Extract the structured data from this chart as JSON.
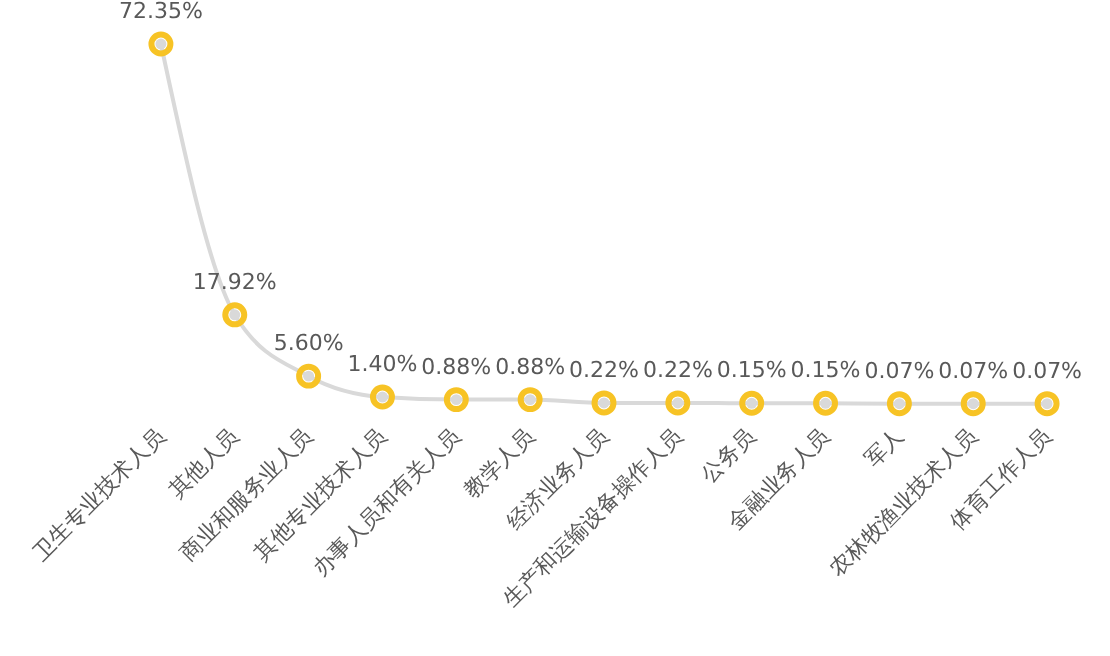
{
  "chart_data": {
    "type": "line",
    "categories": [
      "卫生专业技术人员",
      "其他人员",
      "商业和服务业人员",
      "其他专业技术人员",
      "办事人员和有关人员",
      "教学人员",
      "经济业务人员",
      "生产和运输设备操作人员",
      "公务员",
      "金融业务人员",
      "军人",
      "农林牧渔业技术人员",
      "体育工作人员"
    ],
    "series": [
      {
        "color": "#d9d9d9",
        "values": [
          72.35,
          17.92,
          5.6,
          1.4,
          0.88,
          0.88,
          0.22,
          0.22,
          0.15,
          0.15,
          0.07,
          0.07,
          0.07
        ]
      },
      {
        "type": "scatter",
        "color": "#f7c325",
        "values": [
          72.35,
          17.92,
          5.6,
          1.4,
          0.88,
          0.88,
          0.22,
          0.22,
          0.15,
          0.15,
          0.07,
          0.07,
          0.07
        ],
        "value_labels": [
          "72.35%",
          "17.92%",
          "5.60%",
          "1.40%",
          "0.88%",
          "0.88%",
          "0.22%",
          "0.22%",
          "0.15%",
          "0.15%",
          "0.07%",
          "0.07%",
          "0.07%"
        ]
      }
    ],
    "marker": "circle"
  }
}
